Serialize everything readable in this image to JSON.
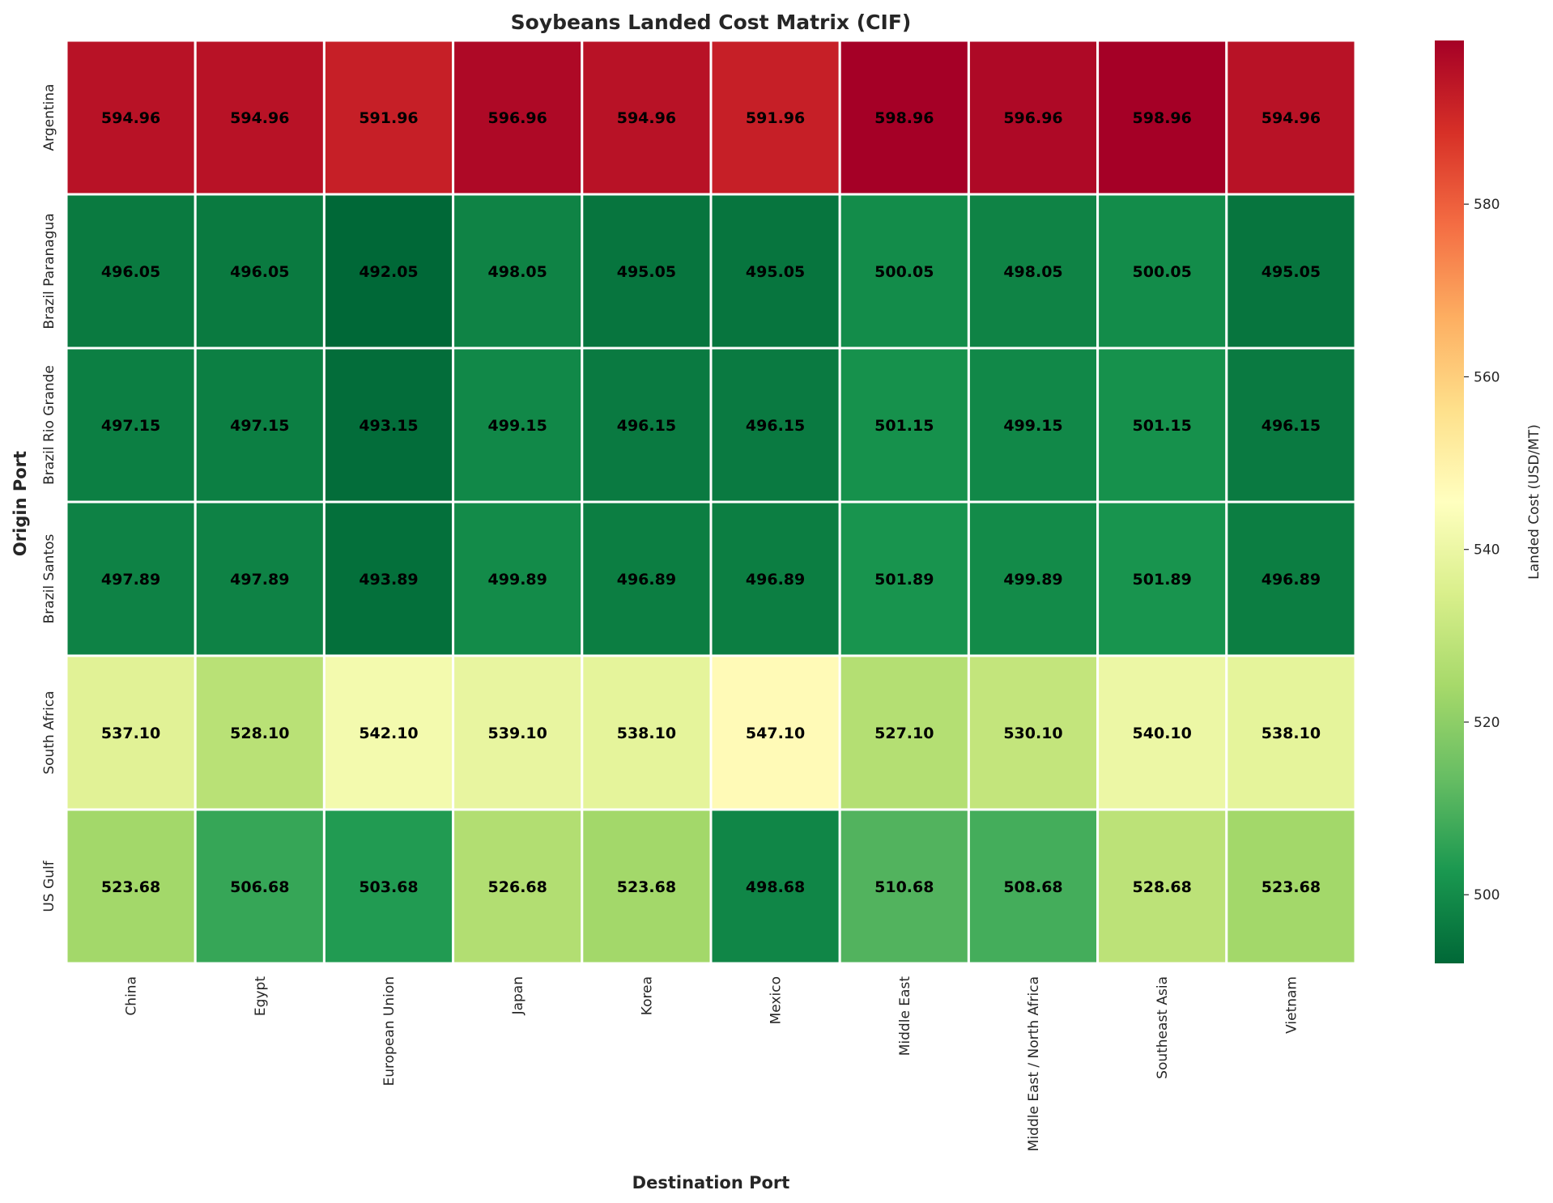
{
  "chart_data": {
    "type": "heatmap",
    "title": "Soybeans Landed Cost Matrix (CIF)",
    "xlabel": "Destination Port",
    "ylabel": "Origin Port",
    "x_categories": [
      "China",
      "Egypt",
      "European Union",
      "Japan",
      "Korea",
      "Mexico",
      "Middle East",
      "Middle East / North Africa",
      "Southeast Asia",
      "Vietnam"
    ],
    "y_categories": [
      "Argentina",
      "Brazil Paranagua",
      "Brazil Rio Grande",
      "Brazil Santos",
      "South Africa",
      "US Gulf"
    ],
    "values": [
      [
        594.96,
        594.96,
        591.96,
        596.96,
        594.96,
        591.96,
        598.96,
        596.96,
        598.96,
        594.96
      ],
      [
        496.05,
        496.05,
        492.05,
        498.05,
        495.05,
        495.05,
        500.05,
        498.05,
        500.05,
        495.05
      ],
      [
        497.15,
        497.15,
        493.15,
        499.15,
        496.15,
        496.15,
        501.15,
        499.15,
        501.15,
        496.15
      ],
      [
        497.89,
        497.89,
        493.89,
        499.89,
        496.89,
        496.89,
        501.89,
        499.89,
        501.89,
        496.89
      ],
      [
        537.1,
        528.1,
        542.1,
        539.1,
        538.1,
        547.1,
        527.1,
        530.1,
        540.1,
        538.1
      ],
      [
        523.68,
        506.68,
        503.68,
        526.68,
        523.68,
        498.68,
        510.68,
        508.68,
        528.68,
        523.68
      ]
    ],
    "value_format_decimals": 2,
    "colormap": "RdYlGn_r",
    "colorbar": {
      "label": "Landed Cost (USD/MT)",
      "range": [
        492.05,
        598.96
      ],
      "ticks": [
        500,
        520,
        540,
        560,
        580
      ]
    },
    "grid": false,
    "cell_border_color": "#ffffff"
  }
}
